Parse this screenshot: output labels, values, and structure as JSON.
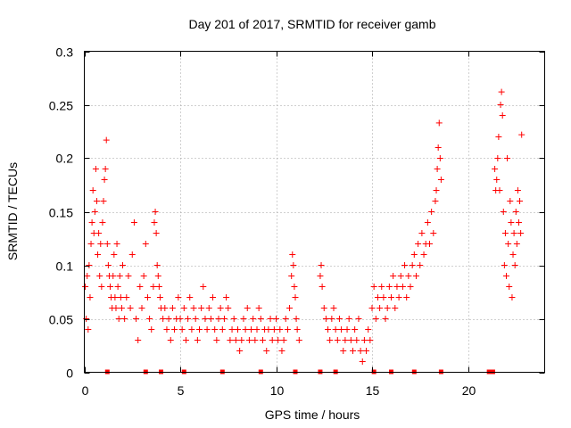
{
  "chart_data": {
    "type": "scatter",
    "title": "Day 201 of 2017, SRMTID for receiver gamb",
    "xlabel": "GPS time / hours",
    "ylabel": "SRMTID / TECUs",
    "xlim": [
      0,
      24
    ],
    "ylim": [
      0,
      0.3
    ],
    "xticks": [
      0,
      5,
      10,
      15,
      20
    ],
    "xtick_labels": [
      "0",
      "5",
      "10",
      "15",
      "20"
    ],
    "yticks": [
      0,
      0.05,
      0.1,
      0.15,
      0.2,
      0.25,
      0.3
    ],
    "ytick_labels": [
      "0",
      "0.05",
      "0.1",
      "0.15",
      "0.2",
      "0.25",
      "0.3"
    ],
    "grid": true,
    "marker": "+",
    "color": "#ff0000",
    "series": [
      {
        "name": "SRMTID",
        "points": [
          [
            0.05,
            0.08
          ],
          [
            0.1,
            0.05
          ],
          [
            0.15,
            0.09
          ],
          [
            0.2,
            0.04
          ],
          [
            0.25,
            0.1
          ],
          [
            0.3,
            0.07
          ],
          [
            0.35,
            0.12
          ],
          [
            0.4,
            0.14
          ],
          [
            0.45,
            0.17
          ],
          [
            0.5,
            0.13
          ],
          [
            0.55,
            0.15
          ],
          [
            0.6,
            0.19
          ],
          [
            0.65,
            0.16
          ],
          [
            0.7,
            0.11
          ],
          [
            0.75,
            0.13
          ],
          [
            0.8,
            0.09
          ],
          [
            0.85,
            0.12
          ],
          [
            0.9,
            0.08
          ],
          [
            0.95,
            0.14
          ],
          [
            1.0,
            0.16
          ],
          [
            1.05,
            0.18
          ],
          [
            1.1,
            0.19
          ],
          [
            1.15,
            0.217
          ],
          [
            1.2,
            0.12
          ],
          [
            1.25,
            0.1
          ],
          [
            1.3,
            0.09
          ],
          [
            1.35,
            0.08
          ],
          [
            1.4,
            0.07
          ],
          [
            1.45,
            0.06
          ],
          [
            1.5,
            0.09
          ],
          [
            1.55,
            0.11
          ],
          [
            1.6,
            0.07
          ],
          [
            1.65,
            0.06
          ],
          [
            1.7,
            0.12
          ],
          [
            1.75,
            0.08
          ],
          [
            1.8,
            0.05
          ],
          [
            1.85,
            0.09
          ],
          [
            1.9,
            0.07
          ],
          [
            1.95,
            0.06
          ],
          [
            2.0,
            0.1
          ],
          [
            2.1,
            0.05
          ],
          [
            2.2,
            0.07
          ],
          [
            2.3,
            0.09
          ],
          [
            2.4,
            0.06
          ],
          [
            2.5,
            0.11
          ],
          [
            2.6,
            0.14
          ],
          [
            2.7,
            0.05
          ],
          [
            2.8,
            0.03
          ],
          [
            2.9,
            0.08
          ],
          [
            3.0,
            0.06
          ],
          [
            3.1,
            0.09
          ],
          [
            3.2,
            0.12
          ],
          [
            3.3,
            0.07
          ],
          [
            3.4,
            0.05
          ],
          [
            3.5,
            0.04
          ],
          [
            3.6,
            0.08
          ],
          [
            3.65,
            0.14
          ],
          [
            3.7,
            0.15
          ],
          [
            3.75,
            0.13
          ],
          [
            3.8,
            0.1
          ],
          [
            3.85,
            0.09
          ],
          [
            3.9,
            0.08
          ],
          [
            3.95,
            0.07
          ],
          [
            4.0,
            0.06
          ],
          [
            4.1,
            0.05
          ],
          [
            4.2,
            0.06
          ],
          [
            4.3,
            0.04
          ],
          [
            4.4,
            0.05
          ],
          [
            4.5,
            0.03
          ],
          [
            4.6,
            0.06
          ],
          [
            4.7,
            0.04
          ],
          [
            4.8,
            0.05
          ],
          [
            4.9,
            0.07
          ],
          [
            5.0,
            0.05
          ],
          [
            5.1,
            0.04
          ],
          [
            5.2,
            0.06
          ],
          [
            5.3,
            0.03
          ],
          [
            5.4,
            0.05
          ],
          [
            5.5,
            0.07
          ],
          [
            5.6,
            0.04
          ],
          [
            5.7,
            0.06
          ],
          [
            5.8,
            0.05
          ],
          [
            5.9,
            0.03
          ],
          [
            6.0,
            0.04
          ],
          [
            6.1,
            0.06
          ],
          [
            6.2,
            0.08
          ],
          [
            6.3,
            0.05
          ],
          [
            6.4,
            0.04
          ],
          [
            6.5,
            0.06
          ],
          [
            6.6,
            0.05
          ],
          [
            6.7,
            0.07
          ],
          [
            6.8,
            0.04
          ],
          [
            6.9,
            0.03
          ],
          [
            7.0,
            0.05
          ],
          [
            7.1,
            0.06
          ],
          [
            7.2,
            0.04
          ],
          [
            7.3,
            0.05
          ],
          [
            7.4,
            0.07
          ],
          [
            7.5,
            0.06
          ],
          [
            7.6,
            0.03
          ],
          [
            7.7,
            0.04
          ],
          [
            7.8,
            0.05
          ],
          [
            7.9,
            0.03
          ],
          [
            8.0,
            0.04
          ],
          [
            8.1,
            0.02
          ],
          [
            8.2,
            0.03
          ],
          [
            8.3,
            0.05
          ],
          [
            8.4,
            0.04
          ],
          [
            8.5,
            0.06
          ],
          [
            8.6,
            0.03
          ],
          [
            8.7,
            0.04
          ],
          [
            8.8,
            0.05
          ],
          [
            8.9,
            0.03
          ],
          [
            9.0,
            0.04
          ],
          [
            9.1,
            0.06
          ],
          [
            9.2,
            0.05
          ],
          [
            9.3,
            0.03
          ],
          [
            9.4,
            0.04
          ],
          [
            9.5,
            0.02
          ],
          [
            9.6,
            0.04
          ],
          [
            9.7,
            0.05
          ],
          [
            9.8,
            0.03
          ],
          [
            9.9,
            0.04
          ],
          [
            10.0,
            0.05
          ],
          [
            10.1,
            0.03
          ],
          [
            10.2,
            0.04
          ],
          [
            10.3,
            0.02
          ],
          [
            10.4,
            0.03
          ],
          [
            10.5,
            0.05
          ],
          [
            10.6,
            0.04
          ],
          [
            10.7,
            0.06
          ],
          [
            10.8,
            0.09
          ],
          [
            10.85,
            0.11
          ],
          [
            10.9,
            0.1
          ],
          [
            10.95,
            0.08
          ],
          [
            11.0,
            0.07
          ],
          [
            11.05,
            0.05
          ],
          [
            11.1,
            0.04
          ],
          [
            11.2,
            0.03
          ],
          [
            12.3,
            0.09
          ],
          [
            12.35,
            0.1
          ],
          [
            12.4,
            0.08
          ],
          [
            12.5,
            0.06
          ],
          [
            12.6,
            0.05
          ],
          [
            12.7,
            0.04
          ],
          [
            12.8,
            0.03
          ],
          [
            12.9,
            0.05
          ],
          [
            13.0,
            0.06
          ],
          [
            13.1,
            0.04
          ],
          [
            13.2,
            0.03
          ],
          [
            13.3,
            0.05
          ],
          [
            13.4,
            0.04
          ],
          [
            13.5,
            0.02
          ],
          [
            13.6,
            0.03
          ],
          [
            13.7,
            0.04
          ],
          [
            13.8,
            0.05
          ],
          [
            13.9,
            0.03
          ],
          [
            14.0,
            0.02
          ],
          [
            14.1,
            0.04
          ],
          [
            14.2,
            0.03
          ],
          [
            14.3,
            0.05
          ],
          [
            14.4,
            0.02
          ],
          [
            14.5,
            0.01
          ],
          [
            14.6,
            0.03
          ],
          [
            14.7,
            0.02
          ],
          [
            14.8,
            0.04
          ],
          [
            14.9,
            0.03
          ],
          [
            15.0,
            0.06
          ],
          [
            15.1,
            0.08
          ],
          [
            15.2,
            0.05
          ],
          [
            15.3,
            0.07
          ],
          [
            15.4,
            0.06
          ],
          [
            15.5,
            0.08
          ],
          [
            15.6,
            0.07
          ],
          [
            15.7,
            0.05
          ],
          [
            15.8,
            0.06
          ],
          [
            15.9,
            0.08
          ],
          [
            16.0,
            0.07
          ],
          [
            16.1,
            0.09
          ],
          [
            16.2,
            0.06
          ],
          [
            16.3,
            0.08
          ],
          [
            16.4,
            0.07
          ],
          [
            16.5,
            0.09
          ],
          [
            16.6,
            0.08
          ],
          [
            16.7,
            0.1
          ],
          [
            16.8,
            0.07
          ],
          [
            16.9,
            0.09
          ],
          [
            17.0,
            0.08
          ],
          [
            17.1,
            0.1
          ],
          [
            17.2,
            0.11
          ],
          [
            17.3,
            0.09
          ],
          [
            17.4,
            0.12
          ],
          [
            17.5,
            0.1
          ],
          [
            17.6,
            0.13
          ],
          [
            17.7,
            0.11
          ],
          [
            17.8,
            0.12
          ],
          [
            17.9,
            0.14
          ],
          [
            18.0,
            0.12
          ],
          [
            18.1,
            0.15
          ],
          [
            18.2,
            0.13
          ],
          [
            18.3,
            0.16
          ],
          [
            18.35,
            0.17
          ],
          [
            18.4,
            0.19
          ],
          [
            18.45,
            0.21
          ],
          [
            18.5,
            0.233
          ],
          [
            18.55,
            0.2
          ],
          [
            18.6,
            0.18
          ],
          [
            21.4,
            0.19
          ],
          [
            21.45,
            0.17
          ],
          [
            21.5,
            0.18
          ],
          [
            21.55,
            0.2
          ],
          [
            21.6,
            0.22
          ],
          [
            21.65,
            0.17
          ],
          [
            21.7,
            0.25
          ],
          [
            21.75,
            0.262
          ],
          [
            21.8,
            0.24
          ],
          [
            21.85,
            0.15
          ],
          [
            21.9,
            0.1
          ],
          [
            21.95,
            0.13
          ],
          [
            22.0,
            0.09
          ],
          [
            22.05,
            0.2
          ],
          [
            22.1,
            0.12
          ],
          [
            22.15,
            0.08
          ],
          [
            22.2,
            0.16
          ],
          [
            22.25,
            0.14
          ],
          [
            22.3,
            0.07
          ],
          [
            22.35,
            0.11
          ],
          [
            22.4,
            0.13
          ],
          [
            22.45,
            0.1
          ],
          [
            22.5,
            0.15
          ],
          [
            22.55,
            0.12
          ],
          [
            22.6,
            0.17
          ],
          [
            22.65,
            0.14
          ],
          [
            22.7,
            0.16
          ],
          [
            22.75,
            0.13
          ],
          [
            22.8,
            0.222
          ]
        ]
      }
    ],
    "gap_markers_x": [
      1.2,
      3.2,
      4.0,
      5.2,
      7.2,
      9.2,
      11.0,
      12.3,
      13.1,
      15.1,
      16.0,
      17.2,
      18.6,
      21.1,
      21.3
    ]
  }
}
